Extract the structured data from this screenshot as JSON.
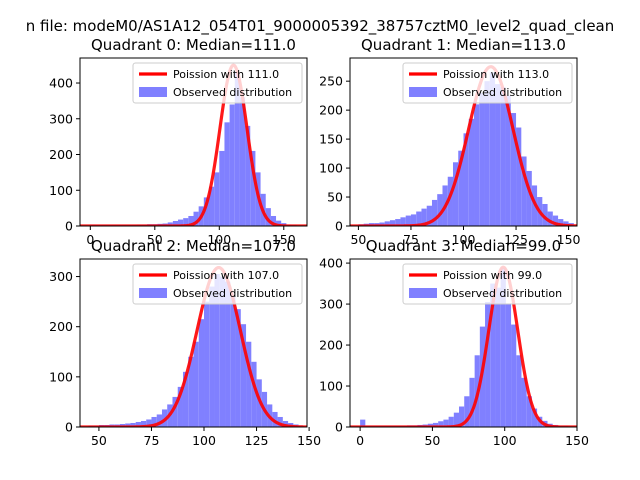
{
  "figure": {
    "suptitle": "n file: modeM0/AS1A12_054T01_9000005392_38757cztM0_level2_quad_clean"
  },
  "colors": {
    "hist": "#8080ff",
    "fit": "#ff0000",
    "axis": "#000000"
  },
  "chart_data": [
    {
      "type": "bar",
      "title": "Quadrant 0: Median=111.0",
      "xlim": [
        -8,
        168
      ],
      "ylim": [
        0,
        470
      ],
      "xticks": [
        0,
        50,
        100,
        150
      ],
      "yticks": [
        0,
        100,
        200,
        300,
        400
      ],
      "median": 111,
      "sigma": 10.5,
      "peak": 450,
      "hist": {
        "x": [
          0,
          4,
          8,
          12,
          16,
          20,
          24,
          28,
          32,
          36,
          40,
          44,
          48,
          52,
          56,
          60,
          64,
          68,
          72,
          76,
          80,
          84,
          88,
          92,
          96,
          100,
          104,
          108,
          112,
          116,
          120,
          124,
          128,
          132,
          136,
          140,
          144,
          148,
          152,
          156
        ],
        "width": 4,
        "values": [
          4,
          3,
          3,
          3,
          3,
          3,
          3,
          3,
          3,
          4,
          4,
          5,
          5,
          6,
          7,
          10,
          14,
          18,
          22,
          28,
          40,
          55,
          80,
          110,
          150,
          210,
          290,
          340,
          430,
          360,
          280,
          210,
          150,
          90,
          50,
          28,
          15,
          8,
          4,
          3
        ]
      },
      "legend": {
        "fit": "Poission with 111.0",
        "observed": "Observed distribution"
      }
    },
    {
      "type": "bar",
      "title": "Quadrant 1: Median=113.0",
      "xlim": [
        46,
        154
      ],
      "ylim": [
        0,
        290
      ],
      "xticks": [
        50,
        75,
        100,
        125,
        150
      ],
      "yticks": [
        0,
        50,
        100,
        150,
        200,
        250
      ],
      "median": 113,
      "sigma": 10.6,
      "peak": 275,
      "hist": {
        "x": [
          50,
          52.5,
          55,
          57.5,
          60,
          62.5,
          65,
          67.5,
          70,
          72.5,
          75,
          77.5,
          80,
          82.5,
          85,
          87.5,
          90,
          92.5,
          95,
          97.5,
          100,
          102.5,
          105,
          107.5,
          110,
          112.5,
          115,
          117.5,
          120,
          122.5,
          125,
          127.5,
          130,
          132.5,
          135,
          137.5,
          140,
          142.5,
          145,
          147.5,
          150
        ],
        "width": 2.5,
        "values": [
          3,
          4,
          5,
          5,
          6,
          8,
          10,
          12,
          15,
          18,
          20,
          25,
          30,
          35,
          45,
          55,
          70,
          85,
          110,
          130,
          160,
          185,
          210,
          230,
          250,
          265,
          245,
          240,
          225,
          195,
          170,
          120,
          95,
          70,
          50,
          38,
          25,
          18,
          12,
          8,
          5
        ]
      },
      "legend": {
        "fit": "Poission with 113.0",
        "observed": "Observed distribution"
      }
    },
    {
      "type": "bar",
      "title": "Quadrant 2: Median=107.0",
      "xlim": [
        41,
        149
      ],
      "ylim": [
        0,
        335
      ],
      "xticks": [
        50,
        75,
        100,
        125,
        150
      ],
      "yticks": [
        0,
        100,
        200,
        300
      ],
      "median": 107,
      "sigma": 10.3,
      "peak": 318,
      "hist": {
        "x": [
          45,
          47.5,
          50,
          52.5,
          55,
          57.5,
          60,
          62.5,
          65,
          67.5,
          70,
          72.5,
          75,
          77.5,
          80,
          82.5,
          85,
          87.5,
          90,
          92.5,
          95,
          97.5,
          100,
          102.5,
          105,
          107.5,
          110,
          112.5,
          115,
          117.5,
          120,
          122.5,
          125,
          127.5,
          130,
          132.5,
          135,
          137.5,
          140,
          142.5,
          145
        ],
        "width": 2.5,
        "values": [
          3,
          3,
          4,
          4,
          5,
          5,
          6,
          7,
          8,
          10,
          12,
          15,
          20,
          25,
          35,
          45,
          60,
          80,
          110,
          140,
          170,
          215,
          250,
          280,
          305,
          300,
          290,
          260,
          235,
          205,
          170,
          130,
          95,
          70,
          45,
          30,
          20,
          12,
          8,
          5,
          3
        ]
      },
      "legend": {
        "fit": "Poission with 107.0",
        "observed": "Observed distribution"
      }
    },
    {
      "type": "bar",
      "title": "Quadrant 3: Median=99.0",
      "xlim": [
        -7,
        150
      ],
      "ylim": [
        0,
        410
      ],
      "xticks": [
        0,
        50,
        100,
        150
      ],
      "yticks": [
        0,
        100,
        200,
        300,
        400
      ],
      "median": 99,
      "sigma": 10.0,
      "peak": 390,
      "hist": {
        "x": [
          0,
          3.6,
          7.2,
          10.8,
          14.4,
          18,
          21.6,
          25.2,
          28.8,
          32.4,
          36,
          39.6,
          43.2,
          46.8,
          50.4,
          54,
          57.6,
          61.2,
          64.8,
          68.4,
          72,
          75.6,
          79.2,
          82.8,
          86.4,
          90,
          93.6,
          97.2,
          100.8,
          104.4,
          108,
          111.6,
          115.2,
          118.8,
          122.4,
          126,
          129.6,
          133.2,
          136.8,
          140.4
        ],
        "width": 3.6,
        "values": [
          18,
          3,
          3,
          3,
          3,
          3,
          3,
          3,
          3,
          4,
          4,
          5,
          6,
          8,
          10,
          14,
          18,
          25,
          35,
          50,
          75,
          120,
          175,
          245,
          305,
          350,
          340,
          390,
          300,
          250,
          175,
          120,
          75,
          45,
          25,
          15,
          8,
          5,
          3,
          3
        ]
      },
      "legend": {
        "fit": "Poission with 99.0",
        "observed": "Observed distribution"
      }
    }
  ]
}
